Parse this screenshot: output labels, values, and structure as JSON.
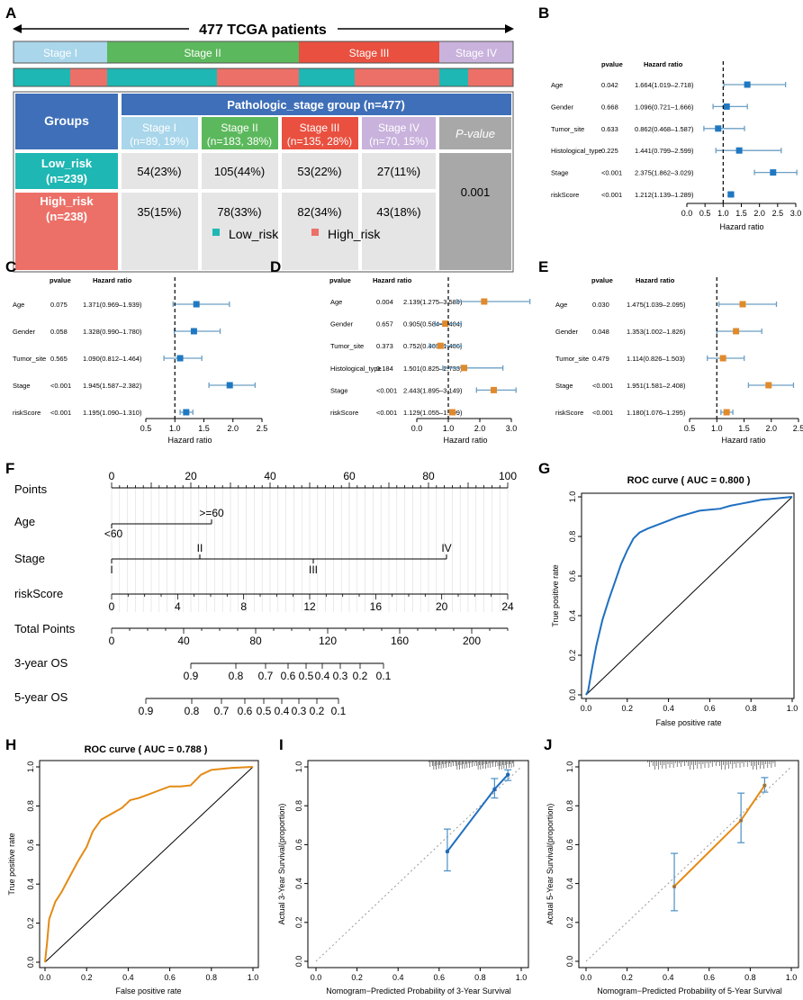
{
  "colors": {
    "stage1": "#a9d6ea",
    "stage2": "#5cb85c",
    "stage3": "#e9503f",
    "stage4": "#c9b2dc",
    "low": "#1fb7b3",
    "high": "#ec7068",
    "header_blue": "#3e6fb8",
    "cell_gray": "#e5e5e5",
    "pval_gray": "#a8a8a8",
    "forest_blue": "#1f78c1",
    "forest_orange": "#e08a2b",
    "ci_line": "#6c9fc4",
    "roc_blue": "#1f6fc0",
    "roc_orange": "#e48a14"
  },
  "panel_labels": [
    "A",
    "B",
    "C",
    "D",
    "E",
    "F",
    "G",
    "H",
    "I",
    "J"
  ],
  "panelA": {
    "arrow_title": "477 TCGA patients",
    "stage_bar": [
      "Stage I",
      "Stage II",
      "Stage III",
      "Stage IV"
    ],
    "groups_label": "Groups",
    "header": "Pathologic_stage group (n=477)",
    "stage_cols": [
      {
        "name": "Stage I",
        "sub": "(n=89, 19%)"
      },
      {
        "name": "Stage II",
        "sub": "(n=183, 38%)"
      },
      {
        "name": "Stage III",
        "sub": "(n=135, 28%)"
      },
      {
        "name": "Stage IV",
        "sub": "(n=70, 15%)"
      }
    ],
    "pvalue_label": "P-value",
    "pvalue": "0.001",
    "rows": [
      {
        "name": "Low_risk",
        "n": "(n=239)",
        "cells": [
          "54(23%)",
          "105(44%)",
          "53(22%)",
          "27(11%)"
        ]
      },
      {
        "name": "High_risk",
        "n": "(n=238)",
        "cells": [
          "35(15%)",
          "78(33%)",
          "82(34%)",
          "43(18%)"
        ]
      }
    ],
    "legend": [
      "Low_risk",
      "High_risk"
    ]
  },
  "chart_data": [
    {
      "type": "forest",
      "id": "B",
      "col_pvalue": "pvalue",
      "col_hr": "Hazard ratio",
      "xlabel": "Hazard ratio",
      "xlim": [
        0,
        3
      ],
      "ticks": [
        "0.0",
        "0.5",
        "1.0",
        "1.5",
        "2.0",
        "2.5",
        "3.0"
      ],
      "rows": [
        {
          "label": "Age",
          "p": "0.042",
          "hr_text": "1.664(1.019–2.718)",
          "hr": 1.664,
          "lo": 1.019,
          "hi": 2.718
        },
        {
          "label": "Gender",
          "p": "0.668",
          "hr_text": "1.096(0.721–1.666)",
          "hr": 1.096,
          "lo": 0.721,
          "hi": 1.666
        },
        {
          "label": "Tumor_site",
          "p": "0.633",
          "hr_text": "0.862(0.468–1.587)",
          "hr": 0.862,
          "lo": 0.468,
          "hi": 1.587
        },
        {
          "label": "Histological_type",
          "p": "0.225",
          "hr_text": "1.441(0.799–2.599)",
          "hr": 1.441,
          "lo": 0.799,
          "hi": 2.599
        },
        {
          "label": "Stage",
          "p": "<0.001",
          "hr_text": "2.375(1.862–3.029)",
          "hr": 2.375,
          "lo": 1.862,
          "hi": 3.029
        },
        {
          "label": "riskScore",
          "p": "<0.001",
          "hr_text": "1.212(1.139–1.289)",
          "hr": 1.212,
          "lo": 1.139,
          "hi": 1.289
        }
      ]
    },
    {
      "type": "forest",
      "id": "C",
      "col_pvalue": "pvalue",
      "col_hr": "Hazard ratio",
      "xlabel": "Hazard ratio",
      "xlim": [
        0.5,
        2.5
      ],
      "ticks": [
        "0.5",
        "1.0",
        "1.5",
        "2.0",
        "2.5"
      ],
      "rows": [
        {
          "label": "Age",
          "p": "0.075",
          "hr_text": "1.371(0.969–1.939)",
          "hr": 1.371,
          "lo": 0.969,
          "hi": 1.939
        },
        {
          "label": "Gender",
          "p": "0.058",
          "hr_text": "1.328(0.990–1.780)",
          "hr": 1.328,
          "lo": 0.99,
          "hi": 1.78
        },
        {
          "label": "Tumor_site",
          "p": "0.565",
          "hr_text": "1.090(0.812–1.464)",
          "hr": 1.09,
          "lo": 0.812,
          "hi": 1.464
        },
        {
          "label": "Stage",
          "p": "<0.001",
          "hr_text": "1.945(1.587–2.382)",
          "hr": 1.945,
          "lo": 1.587,
          "hi": 2.382
        },
        {
          "label": "riskScore",
          "p": "<0.001",
          "hr_text": "1.195(1.090–1.310)",
          "hr": 1.195,
          "lo": 1.09,
          "hi": 1.31
        }
      ]
    },
    {
      "type": "forest",
      "id": "D",
      "col_pvalue": "pvalue",
      "col_hr": "Hazard ratio",
      "xlabel": "Hazard ratio",
      "xlim": [
        0,
        3
      ],
      "ticks": [
        "0.0",
        "1.0",
        "2.0",
        "3.0"
      ],
      "rows": [
        {
          "label": "Age",
          "p": "0.004",
          "hr_text": "2.139(1.275–3.589)",
          "hr": 2.139,
          "lo": 1.275,
          "hi": 3.589
        },
        {
          "label": "Gender",
          "p": "0.657",
          "hr_text": "0.905(0.584–1.404)",
          "hr": 0.905,
          "lo": 0.584,
          "hi": 1.404
        },
        {
          "label": "Tumor_site",
          "p": "0.373",
          "hr_text": "0.752(0.403–1.406)",
          "hr": 0.752,
          "lo": 0.403,
          "hi": 1.406
        },
        {
          "label": "Histological_type",
          "p": "0.184",
          "hr_text": "1.501(0.825–2.733)",
          "hr": 1.501,
          "lo": 0.825,
          "hi": 2.733
        },
        {
          "label": "Stage",
          "p": "<0.001",
          "hr_text": "2.443(1.895–3.149)",
          "hr": 2.443,
          "lo": 1.895,
          "hi": 3.149
        },
        {
          "label": "riskScore",
          "p": "<0.001",
          "hr_text": "1.129(1.055–1.209)",
          "hr": 1.129,
          "lo": 1.055,
          "hi": 1.209
        }
      ]
    },
    {
      "type": "forest",
      "id": "E",
      "col_pvalue": "pvalue",
      "col_hr": "Hazard ratio",
      "xlabel": "Hazard ratio",
      "xlim": [
        0.5,
        2.5
      ],
      "ticks": [
        "0.5",
        "1.0",
        "1.5",
        "2.0",
        "2.5"
      ],
      "rows": [
        {
          "label": "Age",
          "p": "0.030",
          "hr_text": "1.475(1.039–2.095)",
          "hr": 1.475,
          "lo": 1.039,
          "hi": 2.095
        },
        {
          "label": "Gender",
          "p": "0.048",
          "hr_text": "1.353(1.002–1.826)",
          "hr": 1.353,
          "lo": 1.002,
          "hi": 1.826
        },
        {
          "label": "Tumor_site",
          "p": "0.479",
          "hr_text": "1.114(0.826–1.503)",
          "hr": 1.114,
          "lo": 0.826,
          "hi": 1.503
        },
        {
          "label": "Stage",
          "p": "<0.001",
          "hr_text": "1.951(1.581–2.408)",
          "hr": 1.951,
          "lo": 1.581,
          "hi": 2.408
        },
        {
          "label": "riskScore",
          "p": "<0.001",
          "hr_text": "1.180(1.076–1.295)",
          "hr": 1.18,
          "lo": 1.076,
          "hi": 1.295
        }
      ]
    },
    {
      "type": "nomogram",
      "id": "F",
      "row_labels": [
        "Points",
        "Age",
        "Stage",
        "riskScore",
        "Total Points",
        "3-year OS",
        "5-year OS"
      ],
      "points_ticks": [
        "0",
        "20",
        "40",
        "60",
        "80",
        "100"
      ],
      "age": {
        "low": "<60",
        "high": ">=60"
      },
      "stage": {
        "I": "I",
        "II": "II",
        "III": "III",
        "IV": "IV"
      },
      "riskscore_ticks": [
        "0",
        "4",
        "8",
        "12",
        "16",
        "20",
        "24"
      ],
      "total_ticks": [
        "0",
        "40",
        "80",
        "120",
        "160",
        "200"
      ],
      "os3_ticks": [
        "0.9",
        "0.8",
        "0.7",
        "0.6",
        "0.5",
        "0.4",
        "0.3",
        "0.2",
        "0.1"
      ],
      "os5_ticks": [
        "0.9",
        "0.8",
        "0.7",
        "0.6",
        "0.5",
        "0.4",
        "0.3",
        "0.2",
        "0.1"
      ]
    },
    {
      "type": "line",
      "id": "G",
      "title": "ROC curve ( AUC =  0.800 )",
      "xlabel": "False positive rate",
      "ylabel": "True positive rate",
      "xlim": [
        0,
        1
      ],
      "ylim": [
        0,
        1
      ],
      "ticks": [
        "0.0",
        "0.2",
        "0.4",
        "0.6",
        "0.8",
        "1.0"
      ],
      "x": [
        0,
        0.01,
        0.03,
        0.05,
        0.08,
        0.11,
        0.14,
        0.17,
        0.2,
        0.23,
        0.26,
        0.3,
        0.35,
        0.4,
        0.45,
        0.5,
        0.55,
        0.6,
        0.65,
        0.7,
        0.75,
        0.8,
        0.85,
        0.9,
        0.95,
        1.0
      ],
      "y": [
        0,
        0.02,
        0.14,
        0.25,
        0.38,
        0.48,
        0.57,
        0.66,
        0.73,
        0.79,
        0.82,
        0.84,
        0.86,
        0.88,
        0.9,
        0.915,
        0.93,
        0.935,
        0.94,
        0.955,
        0.965,
        0.975,
        0.985,
        0.99,
        0.995,
        1.0
      ]
    },
    {
      "type": "line",
      "id": "H",
      "title": "ROC curve ( AUC =  0.788 )",
      "xlabel": "False positive rate",
      "ylabel": "True positive rate",
      "xlim": [
        0,
        1
      ],
      "ylim": [
        0,
        1
      ],
      "ticks": [
        "0.0",
        "0.2",
        "0.4",
        "0.6",
        "0.8",
        "1.0"
      ],
      "x": [
        0,
        0.01,
        0.02,
        0.05,
        0.08,
        0.12,
        0.16,
        0.2,
        0.23,
        0.27,
        0.32,
        0.37,
        0.41,
        0.45,
        0.5,
        0.55,
        0.6,
        0.65,
        0.7,
        0.75,
        0.8,
        0.85,
        0.9,
        1.0
      ],
      "y": [
        0,
        0.1,
        0.22,
        0.31,
        0.36,
        0.44,
        0.52,
        0.59,
        0.67,
        0.73,
        0.76,
        0.79,
        0.83,
        0.84,
        0.86,
        0.88,
        0.9,
        0.9,
        0.905,
        0.96,
        0.985,
        0.99,
        0.995,
        1.0
      ]
    },
    {
      "type": "calibration",
      "id": "I",
      "xlabel": "Nomogram−Predicted Probability of 3-Year Survival",
      "ylabel": "Actual 3-Year Survival(proportion)",
      "xlim": [
        0,
        1
      ],
      "ylim": [
        0,
        1
      ],
      "ticks": [
        "0.0",
        "0.2",
        "0.4",
        "0.6",
        "0.8",
        "1.0"
      ],
      "points": [
        {
          "x": 0.64,
          "y": 0.565,
          "lo": 0.465,
          "hi": 0.68
        },
        {
          "x": 0.87,
          "y": 0.885,
          "lo": 0.84,
          "hi": 0.94
        },
        {
          "x": 0.935,
          "y": 0.96,
          "lo": 0.93,
          "hi": 0.985
        }
      ]
    },
    {
      "type": "calibration",
      "id": "J",
      "xlabel": "Nomogram−Predicted Probability of 5-Year Survival",
      "ylabel": "Actual 5-Year Survival(proportion)",
      "xlim": [
        0,
        1
      ],
      "ylim": [
        0,
        1
      ],
      "ticks": [
        "0.0",
        "0.2",
        "0.4",
        "0.6",
        "0.8",
        "1.0"
      ],
      "points": [
        {
          "x": 0.43,
          "y": 0.385,
          "lo": 0.26,
          "hi": 0.555
        },
        {
          "x": 0.755,
          "y": 0.725,
          "lo": 0.61,
          "hi": 0.865
        },
        {
          "x": 0.87,
          "y": 0.905,
          "lo": 0.87,
          "hi": 0.945
        }
      ]
    }
  ]
}
